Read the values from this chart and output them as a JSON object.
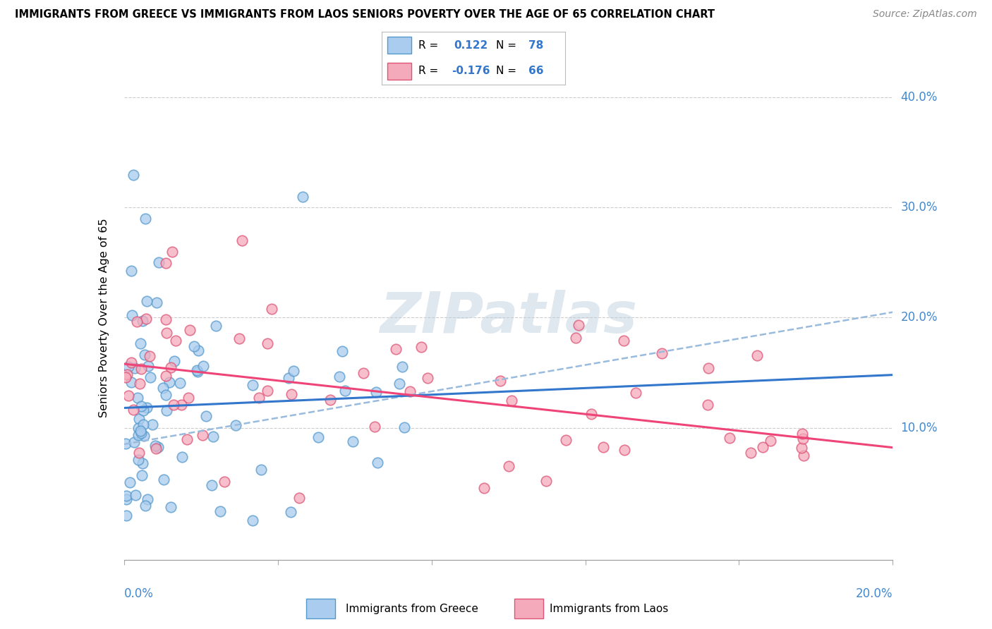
{
  "title": "IMMIGRANTS FROM GREECE VS IMMIGRANTS FROM LAOS SENIORS POVERTY OVER THE AGE OF 65 CORRELATION CHART",
  "source": "Source: ZipAtlas.com",
  "ylabel": "Seniors Poverty Over the Age of 65",
  "xlim": [
    0.0,
    0.2
  ],
  "ylim": [
    -0.02,
    0.42
  ],
  "yticks": [
    0.1,
    0.2,
    0.3,
    0.4
  ],
  "ytick_labels": [
    "10.0%",
    "20.0%",
    "30.0%",
    "40.0%"
  ],
  "legend_r_greece": "R =  0.122",
  "legend_n_greece": "N = 78",
  "legend_r_laos": "R = -0.176",
  "legend_n_laos": "N = 66",
  "greece_fill": "#aaccee",
  "laos_fill": "#f5aabb",
  "greece_edge": "#5599cc",
  "laos_edge": "#dd5577",
  "greece_line_color": "#3377cc",
  "laos_line_color": "#ee4477",
  "dash_line_color": "#99bbdd",
  "watermark": "ZIPatlas",
  "background_color": "#ffffff",
  "grid_color": "#cccccc",
  "greece_trend_x0": 0.0,
  "greece_trend_y0": 0.118,
  "greece_trend_x1": 0.2,
  "greece_trend_y1": 0.148,
  "laos_trend_x0": 0.0,
  "laos_trend_y0": 0.158,
  "laos_trend_x1": 0.2,
  "laos_trend_y1": 0.082,
  "dash_trend_x0": 0.0,
  "dash_trend_y0": 0.085,
  "dash_trend_x1": 0.2,
  "dash_trend_y1": 0.205
}
